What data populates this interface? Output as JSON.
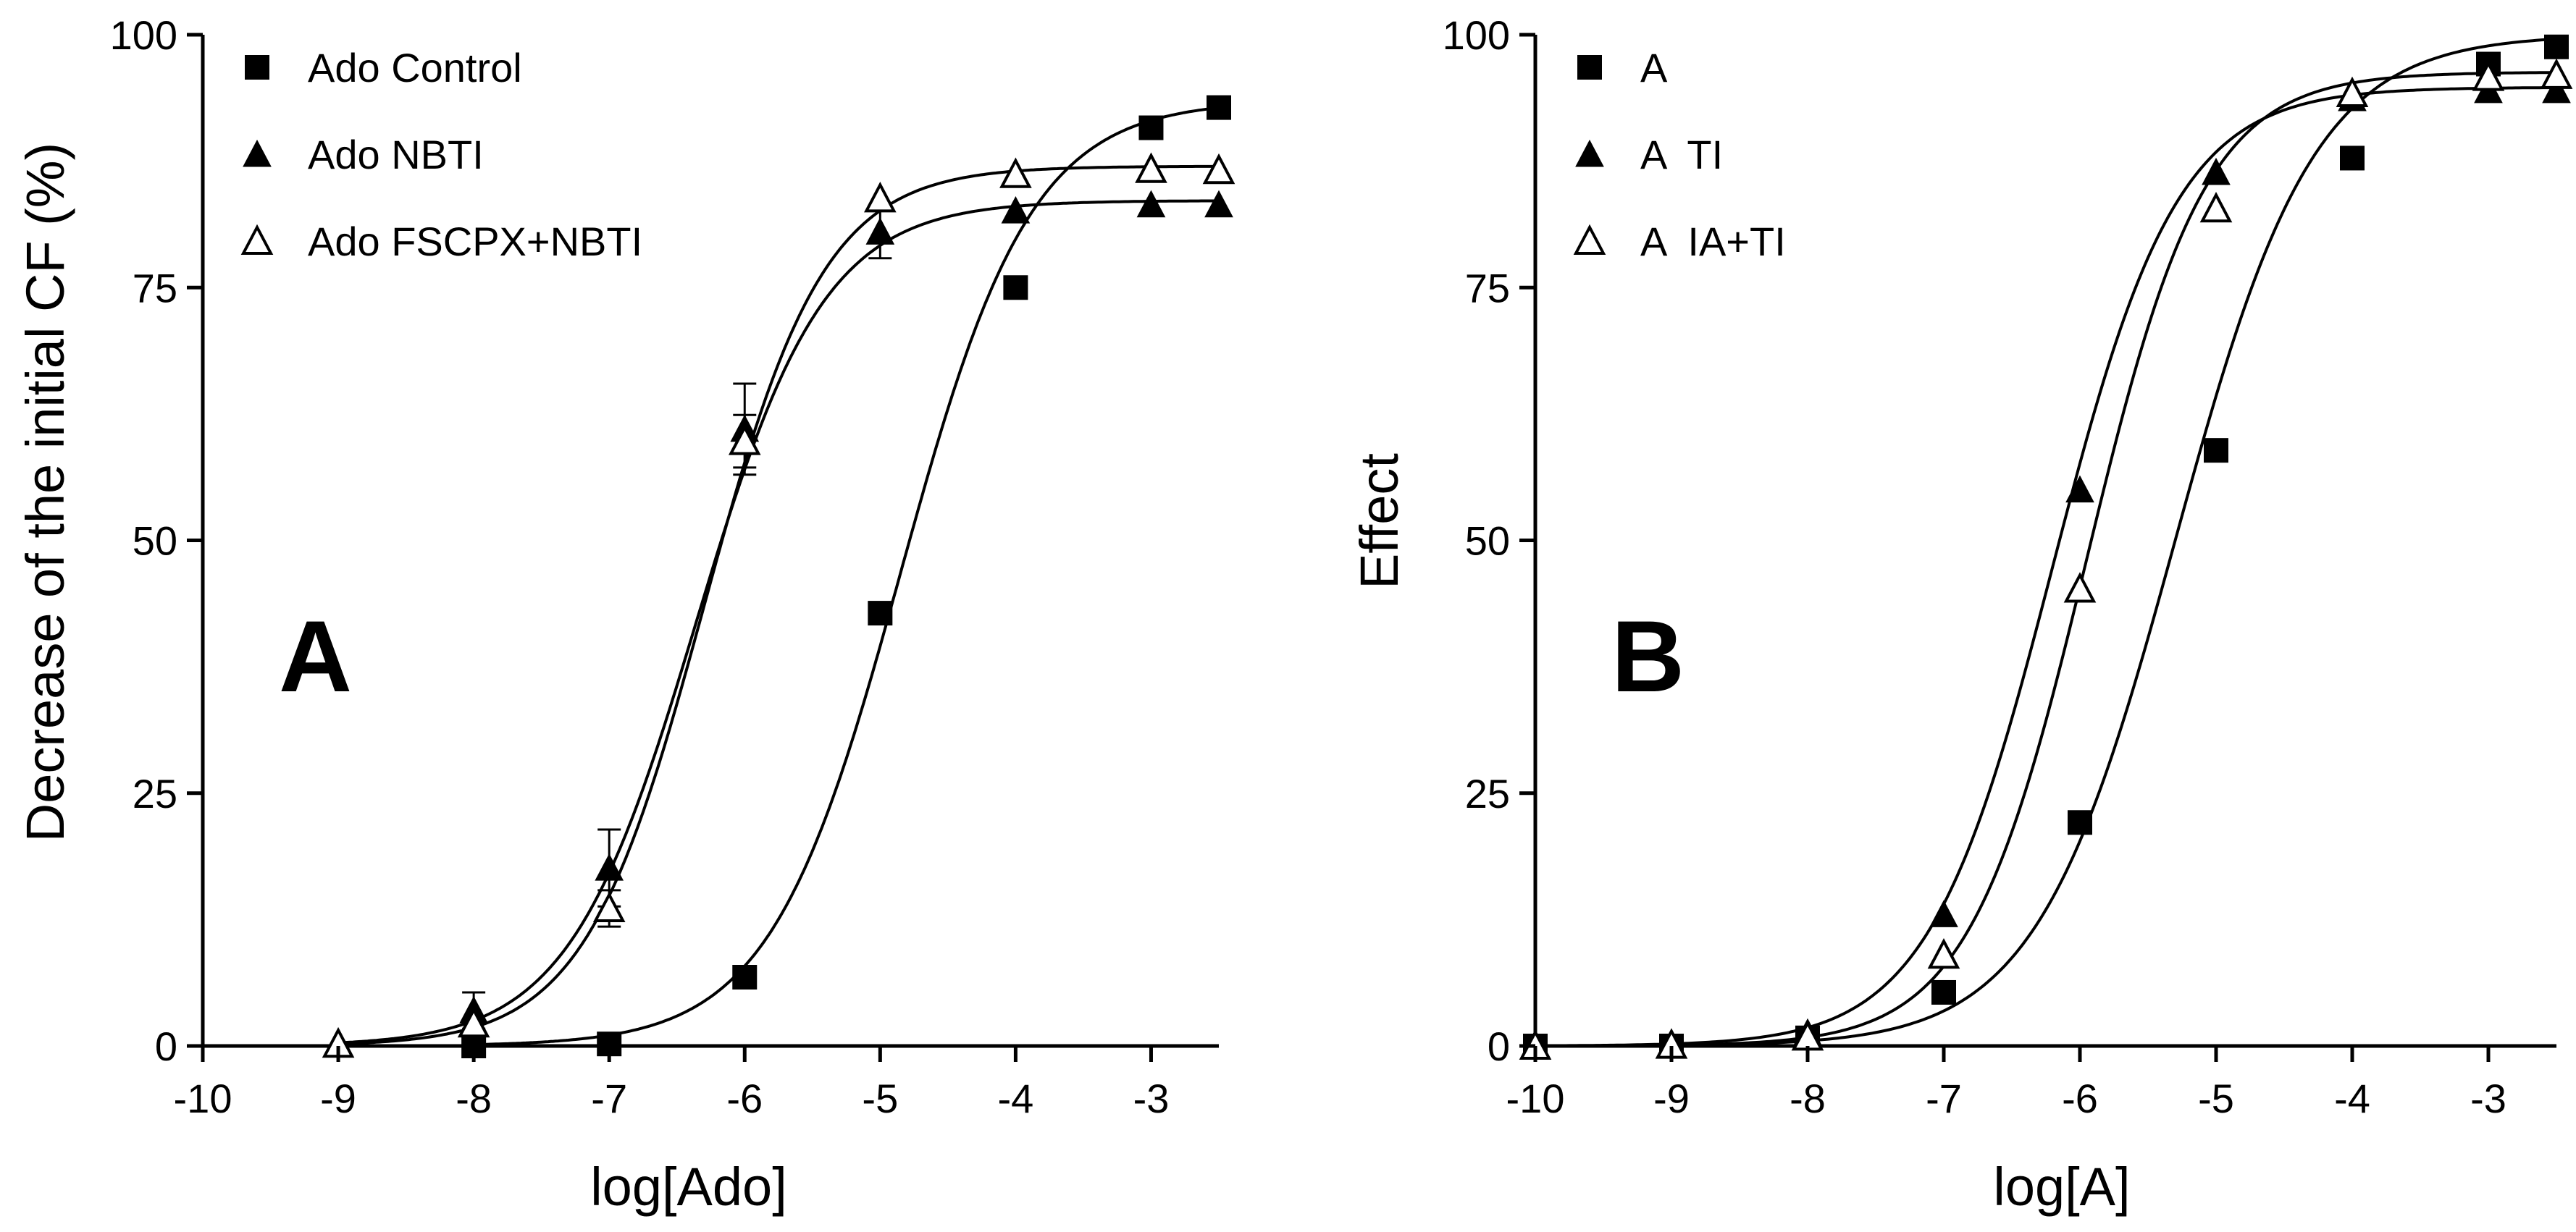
{
  "chart_data": [
    {
      "type": "scatter",
      "panel_label": "A",
      "xlabel": "log[Ado]",
      "ylabel": "Decrease of the initial CF (%)",
      "xlim": [
        -10,
        -2.5
      ],
      "ylim": [
        0,
        100
      ],
      "xticks": [
        -10,
        -9,
        -8,
        -7,
        -6,
        -5,
        -4,
        -3
      ],
      "yticks": [
        0,
        25,
        50,
        75,
        100
      ],
      "xtick_labels": [
        "-10",
        "-9",
        "-8",
        "-7",
        "-6",
        "-5",
        "-4",
        "-3"
      ],
      "ytick_labels": [
        "0",
        "25",
        "50",
        "75",
        "100"
      ],
      "legend_position": "top-left",
      "series": [
        {
          "name": "Ado Control",
          "marker": "filled-square",
          "points": [
            {
              "x": -8,
              "y": 0
            },
            {
              "x": -7,
              "y": 0.2
            },
            {
              "x": -6,
              "y": 6.8
            },
            {
              "x": -5,
              "y": 42.8
            },
            {
              "x": -4,
              "y": 75
            },
            {
              "x": -3,
              "y": 90.8
            },
            {
              "x": -2.5,
              "y": 92.8
            }
          ],
          "fit": {
            "bottom": 0,
            "top": 93.5,
            "logEC50": -4.85,
            "hill": 0.9
          }
        },
        {
          "name": "Ado NBTI",
          "marker": "filled-triangle",
          "points": [
            {
              "x": -9,
              "y": 0.3
            },
            {
              "x": -8,
              "y": 3.5,
              "err": 1.8
            },
            {
              "x": -7,
              "y": 17.6,
              "err": 3.8
            },
            {
              "x": -6,
              "y": 61,
              "err": 4.5
            },
            {
              "x": -5,
              "y": 80.5,
              "err": 2.6
            },
            {
              "x": -4,
              "y": 82.6
            },
            {
              "x": -3,
              "y": 83.2
            },
            {
              "x": -2.5,
              "y": 83.2
            }
          ],
          "fit": {
            "bottom": 0,
            "top": 83.6,
            "logEC50": -6.36,
            "hill": 0.92
          }
        },
        {
          "name": "Ado FSCPX+NBTI",
          "marker": "open-triangle",
          "points": [
            {
              "x": -9,
              "y": 0.2
            },
            {
              "x": -8,
              "y": 2.2
            },
            {
              "x": -7,
              "y": 13.6,
              "err": 1.8
            },
            {
              "x": -6,
              "y": 59.8,
              "err": 2.6
            },
            {
              "x": -5,
              "y": 83.8
            },
            {
              "x": -4,
              "y": 86.2
            },
            {
              "x": -3,
              "y": 86.7
            },
            {
              "x": -2.5,
              "y": 86.6
            }
          ],
          "fit": {
            "bottom": 0,
            "top": 87,
            "logEC50": -6.3,
            "hill": 0.98
          }
        }
      ]
    },
    {
      "type": "scatter",
      "panel_label": "B",
      "xlabel": "log[A]",
      "ylabel": "Effect",
      "xlim": [
        -10,
        -2.5
      ],
      "ylim": [
        0,
        100
      ],
      "xticks": [
        -10,
        -9,
        -8,
        -7,
        -6,
        -5,
        -4,
        -3
      ],
      "yticks": [
        0,
        25,
        50,
        75,
        100
      ],
      "xtick_labels": [
        "-10",
        "-9",
        "-8",
        "-7",
        "-6",
        "-5",
        "-4",
        "-3"
      ],
      "ytick_labels": [
        "0",
        "25",
        "50",
        "75",
        "100"
      ],
      "legend_position": "top-left",
      "series": [
        {
          "name": "A",
          "marker": "filled-square",
          "points": [
            {
              "x": -10,
              "y": 0
            },
            {
              "x": -9,
              "y": 0
            },
            {
              "x": -8,
              "y": 0.8
            },
            {
              "x": -7,
              "y": 5.3
            },
            {
              "x": -6,
              "y": 22.1
            },
            {
              "x": -5,
              "y": 58.9
            },
            {
              "x": -4,
              "y": 87.8
            },
            {
              "x": -3,
              "y": 97.1
            },
            {
              "x": -2.5,
              "y": 98.8
            }
          ],
          "fit": {
            "bottom": 0,
            "top": 100,
            "logEC50": -5.3,
            "hill": 0.85
          }
        },
        {
          "name": "A  TI",
          "marker": "filled-triangle",
          "points": [
            {
              "x": -10,
              "y": 0
            },
            {
              "x": -9,
              "y": 0.2
            },
            {
              "x": -8,
              "y": 1.3
            },
            {
              "x": -7,
              "y": 13
            },
            {
              "x": -6,
              "y": 55
            },
            {
              "x": -5,
              "y": 86.4
            },
            {
              "x": -4,
              "y": 93.7
            },
            {
              "x": -3,
              "y": 94.5
            },
            {
              "x": -2.5,
              "y": 94.5
            }
          ],
          "fit": {
            "bottom": 0,
            "top": 94.8,
            "logEC50": -6.2,
            "hill": 0.95
          }
        },
        {
          "name": "A  IA+TI",
          "marker": "open-triangle",
          "points": [
            {
              "x": -10,
              "y": 0
            },
            {
              "x": -9,
              "y": 0.1
            },
            {
              "x": -8,
              "y": 0.9
            },
            {
              "x": -7,
              "y": 9
            },
            {
              "x": -6,
              "y": 45.2
            },
            {
              "x": -5,
              "y": 82.8
            },
            {
              "x": -4,
              "y": 94.2
            },
            {
              "x": -3,
              "y": 95.8
            },
            {
              "x": -2.5,
              "y": 96
            }
          ],
          "fit": {
            "bottom": 0,
            "top": 96.3,
            "logEC50": -5.95,
            "hill": 1.0
          }
        }
      ]
    }
  ]
}
